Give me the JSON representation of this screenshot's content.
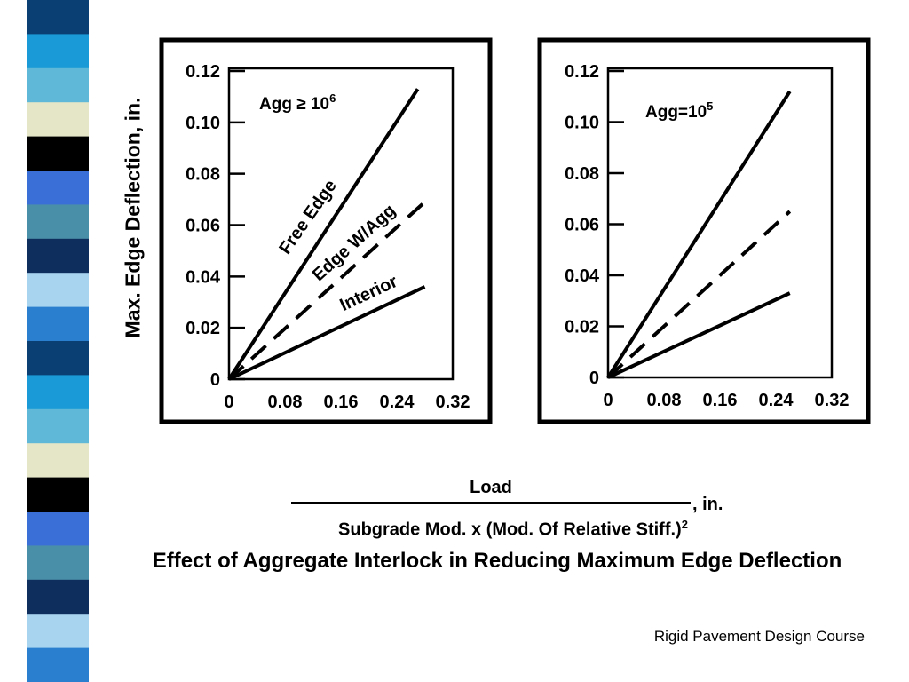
{
  "slide": {
    "footer": "Rigid Pavement Design Course",
    "caption": "Effect of Aggregate Interlock in Reducing Maximum Edge Deflection",
    "ylabel": "Max. Edge Deflection, in.",
    "xlabel_numerator": "Load",
    "xlabel_denominator": "Subgrade Mod. x (Mod. Of Relative Stiff.)",
    "xlabel_den_exponent": "2",
    "xlabel_unit": ", in.",
    "stripe_colors": [
      "#0a3f73",
      "#1a9bd7",
      "#5fb8d8",
      "#e4e6c7",
      "#000000",
      "#3a6fd8",
      "#4a8fa8",
      "#0e2f5e",
      "#a9d4f0",
      "#2a7fcf"
    ]
  },
  "chart_data": [
    {
      "type": "line",
      "annotation": "Agg ≥ 10",
      "annotation_exponent": "6",
      "xlim": [
        0,
        0.32
      ],
      "ylim": [
        0,
        0.12
      ],
      "x_ticks": [
        "0",
        "0.08",
        "0.16",
        "0.24",
        "0.32"
      ],
      "y_ticks": [
        "0",
        "0.02",
        "0.04",
        "0.06",
        "0.08",
        "0.10",
        "0.12"
      ],
      "series": [
        {
          "name": "Free Edge",
          "style": "solid",
          "x": [
            0,
            0.27
          ],
          "y": [
            0,
            0.113
          ]
        },
        {
          "name": "Edge W/Agg",
          "style": "dashed",
          "x": [
            0,
            0.28
          ],
          "y": [
            0,
            0.069
          ]
        },
        {
          "name": "Interior",
          "style": "solid",
          "x": [
            0,
            0.28
          ],
          "y": [
            0,
            0.036
          ]
        }
      ]
    },
    {
      "type": "line",
      "annotation": "Agg=10",
      "annotation_exponent": "5",
      "xlim": [
        0,
        0.32
      ],
      "ylim": [
        0,
        0.12
      ],
      "x_ticks": [
        "0",
        "0.08",
        "0.16",
        "0.24",
        "0.32"
      ],
      "y_ticks": [
        "0",
        "0.02",
        "0.04",
        "0.06",
        "0.08",
        "0.10",
        "0.12"
      ],
      "series": [
        {
          "style": "solid",
          "x": [
            0,
            0.26
          ],
          "y": [
            0,
            0.112
          ]
        },
        {
          "style": "dashed",
          "x": [
            0,
            0.26
          ],
          "y": [
            0,
            0.065
          ]
        },
        {
          "style": "solid",
          "x": [
            0,
            0.26
          ],
          "y": [
            0,
            0.033
          ]
        }
      ]
    }
  ]
}
